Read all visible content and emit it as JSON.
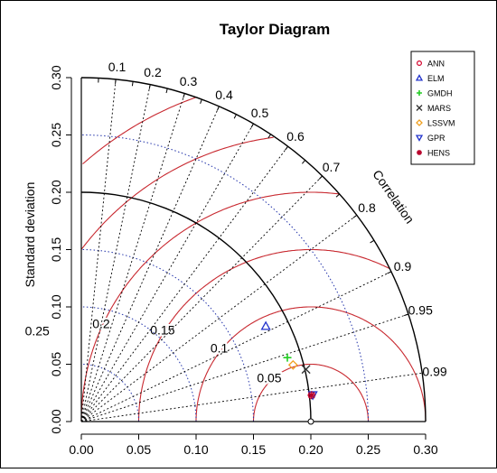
{
  "chart_data": {
    "type": "scatter",
    "title": "Taylor Diagram",
    "ylabel": "Standard deviation",
    "arc_label": "Correlation",
    "sd_max": 0.3,
    "sd_ticks": [
      "0.00",
      "0.05",
      "0.10",
      "0.15",
      "0.20",
      "0.25",
      "0.30"
    ],
    "correlation_ticks": [
      {
        "value": 0.1,
        "label": "0.1"
      },
      {
        "value": 0.2,
        "label": "0.2"
      },
      {
        "value": 0.3,
        "label": "0.3"
      },
      {
        "value": 0.4,
        "label": "0.4"
      },
      {
        "value": 0.5,
        "label": "0.5"
      },
      {
        "value": 0.6,
        "label": "0.6"
      },
      {
        "value": 0.7,
        "label": "0.7"
      },
      {
        "value": 0.8,
        "label": "0.8"
      },
      {
        "value": 0.9,
        "label": "0.9"
      },
      {
        "value": 0.95,
        "label": "0.95"
      },
      {
        "value": 0.99,
        "label": "0.99"
      }
    ],
    "reference_sd": 0.2,
    "rmsd_contours": [
      {
        "value": 0.05,
        "label": "0.05"
      },
      {
        "value": 0.1,
        "label": "0.1"
      },
      {
        "value": 0.15,
        "label": "0.15"
      },
      {
        "value": 0.2,
        "label": "0.2"
      },
      {
        "value": 0.25,
        "label": "0.25"
      },
      {
        "value": 0.3,
        "label": "0.3"
      }
    ],
    "series": [
      {
        "name": "ANN",
        "symbol": "circle",
        "color": "#d4002a",
        "sd": 0.202,
        "cor": 0.9935
      },
      {
        "name": "ELM",
        "symbol": "triangle-up",
        "color": "#2233cc",
        "sd": 0.181,
        "cor": 0.888
      },
      {
        "name": "GMDH",
        "symbol": "plus",
        "color": "#22cc22",
        "sd": 0.188,
        "cor": 0.955
      },
      {
        "name": "MARS",
        "symbol": "cross",
        "color": "#333333",
        "sd": 0.201,
        "cor": 0.974
      },
      {
        "name": "LSSVM",
        "symbol": "diamond",
        "color": "#f0a020",
        "sd": 0.191,
        "cor": 0.966
      },
      {
        "name": "GPR",
        "symbol": "triangle-down",
        "color": "#2233cc",
        "sd": 0.203,
        "cor": 0.9935
      },
      {
        "name": "HENS",
        "symbol": "star",
        "color": "#b8002a",
        "sd": 0.202,
        "cor": 0.9935
      }
    ],
    "legend_position": "top-right"
  }
}
